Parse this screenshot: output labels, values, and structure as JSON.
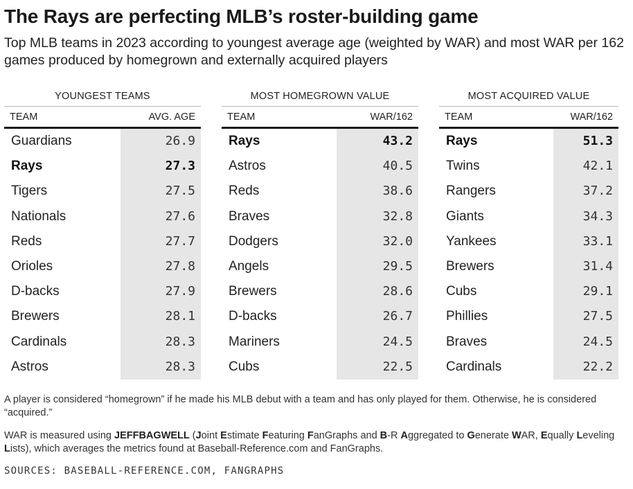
{
  "title": "The Rays are perfecting MLB’s roster-building game",
  "subtitle": "Top MLB teams in 2023 according to youngest average age (weighted by WAR) and most WAR per 162 games produced by homegrown and externally acquired players",
  "colors": {
    "highlight_text": "#111111",
    "value_cell_bg": "#e6e6e6",
    "header_rule": "#1a1a1a"
  },
  "chart_data": [
    {
      "type": "table",
      "title": "YOUNGEST TEAMS",
      "columns": [
        "TEAM",
        "AVG. AGE"
      ],
      "rows": [
        {
          "team": "Guardians",
          "value": "26.9",
          "highlight": false
        },
        {
          "team": "Rays",
          "value": "27.3",
          "highlight": true
        },
        {
          "team": "Tigers",
          "value": "27.5",
          "highlight": false
        },
        {
          "team": "Nationals",
          "value": "27.6",
          "highlight": false
        },
        {
          "team": "Reds",
          "value": "27.7",
          "highlight": false
        },
        {
          "team": "Orioles",
          "value": "27.8",
          "highlight": false
        },
        {
          "team": "D-backs",
          "value": "27.9",
          "highlight": false
        },
        {
          "team": "Brewers",
          "value": "28.1",
          "highlight": false
        },
        {
          "team": "Cardinals",
          "value": "28.3",
          "highlight": false
        },
        {
          "team": "Astros",
          "value": "28.3",
          "highlight": false
        }
      ]
    },
    {
      "type": "table",
      "title": "MOST HOMEGROWN VALUE",
      "columns": [
        "TEAM",
        "WAR/162"
      ],
      "rows": [
        {
          "team": "Rays",
          "value": "43.2",
          "highlight": true
        },
        {
          "team": "Astros",
          "value": "40.5",
          "highlight": false
        },
        {
          "team": "Reds",
          "value": "38.6",
          "highlight": false
        },
        {
          "team": "Braves",
          "value": "32.8",
          "highlight": false
        },
        {
          "team": "Dodgers",
          "value": "32.0",
          "highlight": false
        },
        {
          "team": "Angels",
          "value": "29.5",
          "highlight": false
        },
        {
          "team": "Brewers",
          "value": "28.6",
          "highlight": false
        },
        {
          "team": "D-backs",
          "value": "26.7",
          "highlight": false
        },
        {
          "team": "Mariners",
          "value": "24.5",
          "highlight": false
        },
        {
          "team": "Cubs",
          "value": "22.5",
          "highlight": false
        }
      ]
    },
    {
      "type": "table",
      "title": "MOST ACQUIRED VALUE",
      "columns": [
        "TEAM",
        "WAR/162"
      ],
      "rows": [
        {
          "team": "Rays",
          "value": "51.3",
          "highlight": true
        },
        {
          "team": "Twins",
          "value": "42.1",
          "highlight": false
        },
        {
          "team": "Rangers",
          "value": "37.2",
          "highlight": false
        },
        {
          "team": "Giants",
          "value": "34.3",
          "highlight": false
        },
        {
          "team": "Yankees",
          "value": "33.1",
          "highlight": false
        },
        {
          "team": "Brewers",
          "value": "31.4",
          "highlight": false
        },
        {
          "team": "Cubs",
          "value": "29.1",
          "highlight": false
        },
        {
          "team": "Phillies",
          "value": "27.5",
          "highlight": false
        },
        {
          "team": "Braves",
          "value": "24.5",
          "highlight": false
        },
        {
          "team": "Cardinals",
          "value": "22.2",
          "highlight": false
        }
      ]
    }
  ],
  "notes": {
    "homegrown": "A player is considered “homegrown” if he made his MLB debut with a team and has only played for them. Otherwise, he is considered “acquired.”",
    "war_parts": [
      {
        "text": "WAR is measured using ",
        "bold": false
      },
      {
        "text": "JEFFBAGWELL",
        "bold": true
      },
      {
        "text": " (",
        "bold": false
      },
      {
        "text": "J",
        "bold": true
      },
      {
        "text": "oint ",
        "bold": false
      },
      {
        "text": "E",
        "bold": true
      },
      {
        "text": "stimate ",
        "bold": false
      },
      {
        "text": "F",
        "bold": true
      },
      {
        "text": "eaturing ",
        "bold": false
      },
      {
        "text": "F",
        "bold": true
      },
      {
        "text": "anGraphs and ",
        "bold": false
      },
      {
        "text": "B",
        "bold": true
      },
      {
        "text": "-R ",
        "bold": false
      },
      {
        "text": "A",
        "bold": true
      },
      {
        "text": "ggregated to ",
        "bold": false
      },
      {
        "text": "G",
        "bold": true
      },
      {
        "text": "enerate ",
        "bold": false
      },
      {
        "text": "W",
        "bold": true
      },
      {
        "text": "AR, ",
        "bold": false
      },
      {
        "text": "E",
        "bold": true
      },
      {
        "text": "qually ",
        "bold": false
      },
      {
        "text": "L",
        "bold": true
      },
      {
        "text": "eveling ",
        "bold": false
      },
      {
        "text": "L",
        "bold": true
      },
      {
        "text": "ists), which averages the metrics found at Baseball-Reference.com and FanGraphs.",
        "bold": false
      }
    ]
  },
  "source": "SOURCES: BASEBALL-REFERENCE.COM, FANGRAPHS"
}
